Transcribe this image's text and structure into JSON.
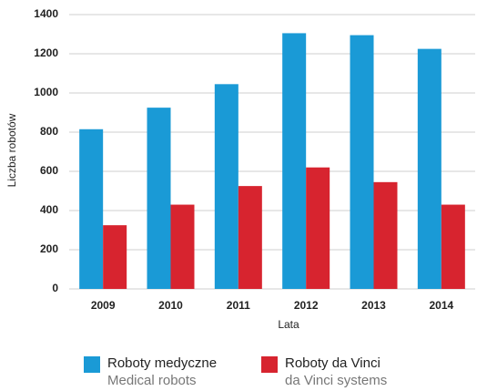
{
  "chart_data": {
    "type": "bar",
    "categories": [
      "2009",
      "2010",
      "2011",
      "2012",
      "2013",
      "2014"
    ],
    "series": [
      {
        "name": "Roboty medyczne",
        "name_en": "Medical robots",
        "color": "#1a9ad6",
        "values": [
          815,
          925,
          1045,
          1305,
          1295,
          1225
        ]
      },
      {
        "name": "Roboty da Vinci",
        "name_en": "da Vinci systems",
        "color": "#d7242f",
        "values": [
          325,
          430,
          525,
          620,
          545,
          430
        ]
      }
    ],
    "xlabel": "Lata",
    "ylabel": "Liczba robotów",
    "ylim": [
      0,
      1400
    ],
    "yticks": [
      0,
      200,
      400,
      600,
      800,
      1000,
      1200,
      1400
    ],
    "grid": true
  }
}
